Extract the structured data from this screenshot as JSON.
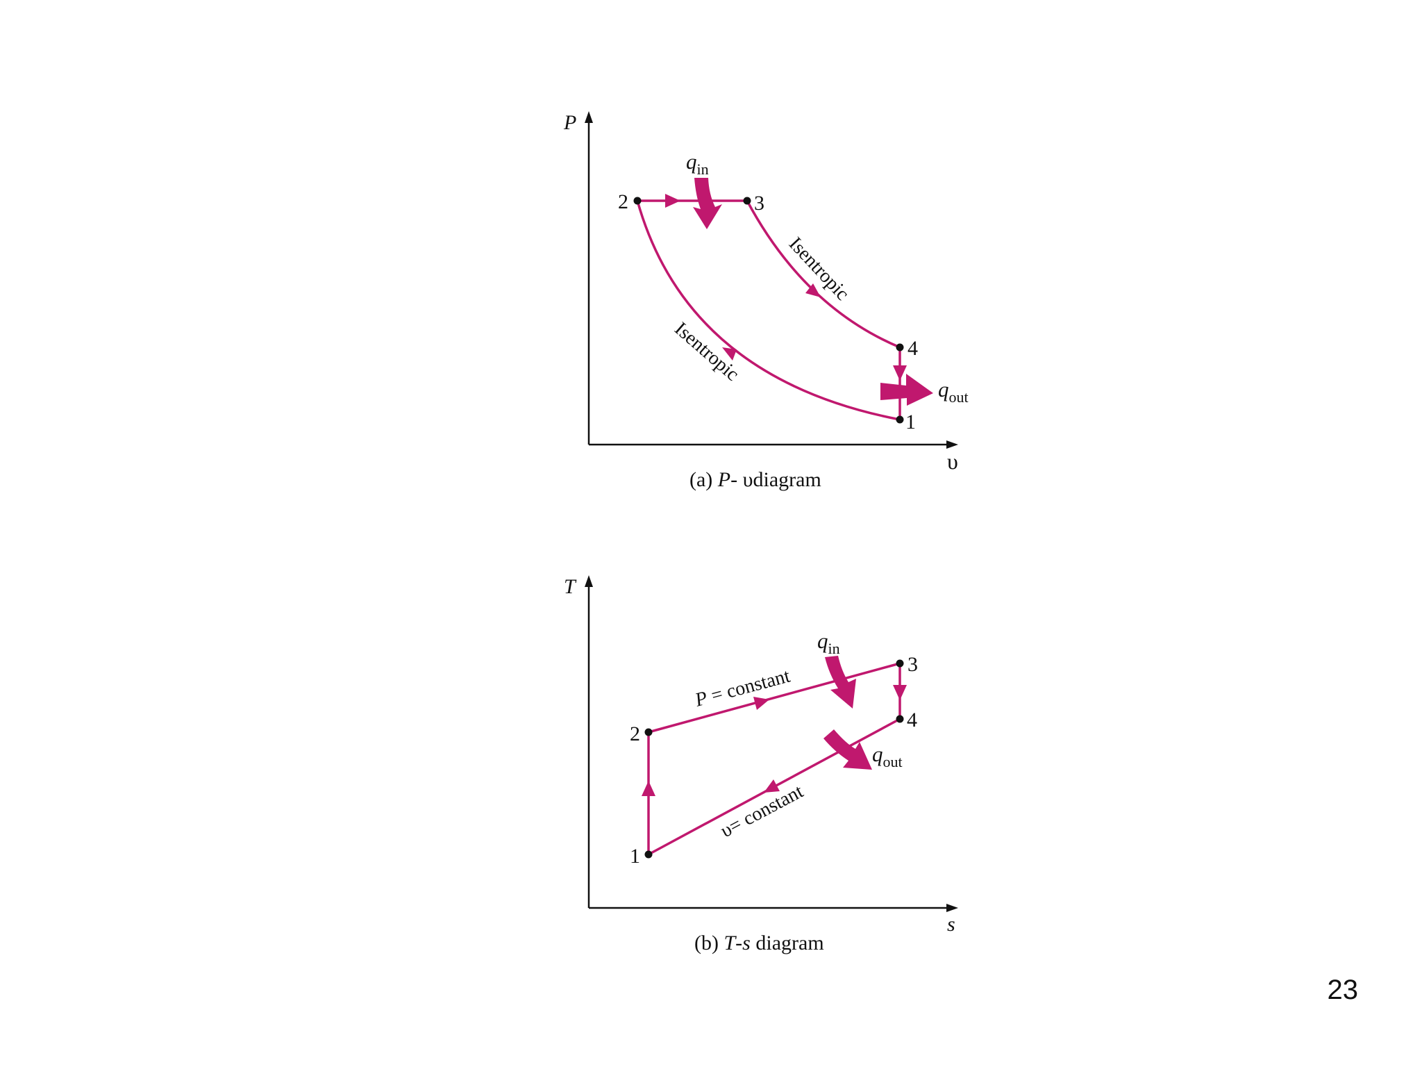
{
  "colors": {
    "process": "#c0186e",
    "axis": "#111111"
  },
  "page_number": "23",
  "pv": {
    "axis_y": "P",
    "axis_x": "υ",
    "caption_prefix": "(a) ",
    "caption_var": "P",
    "caption_dash": "- ",
    "caption_var2": "υ",
    "caption_rest": "diagram",
    "points": [
      "1",
      "2",
      "3",
      "4"
    ],
    "isentropic_upper": "Isentropic",
    "isentropic_lower": "Isentropic",
    "q_in": {
      "sym": "q",
      "sub": "in"
    },
    "q_out": {
      "sym": "q",
      "sub": "out"
    }
  },
  "ts": {
    "axis_y": "T",
    "axis_x": "s",
    "caption_prefix": "(b) ",
    "caption_var": "T",
    "caption_dash": "-",
    "caption_var2": "s",
    "caption_rest": " diagram",
    "points": [
      "1",
      "2",
      "3",
      "4"
    ],
    "p_const_var": "P",
    "p_const_rest": " = constant",
    "v_const_var": "υ",
    "v_const_rest": "= constant",
    "q_in": {
      "sym": "q",
      "sub": "in"
    },
    "q_out": {
      "sym": "q",
      "sub": "out"
    }
  }
}
